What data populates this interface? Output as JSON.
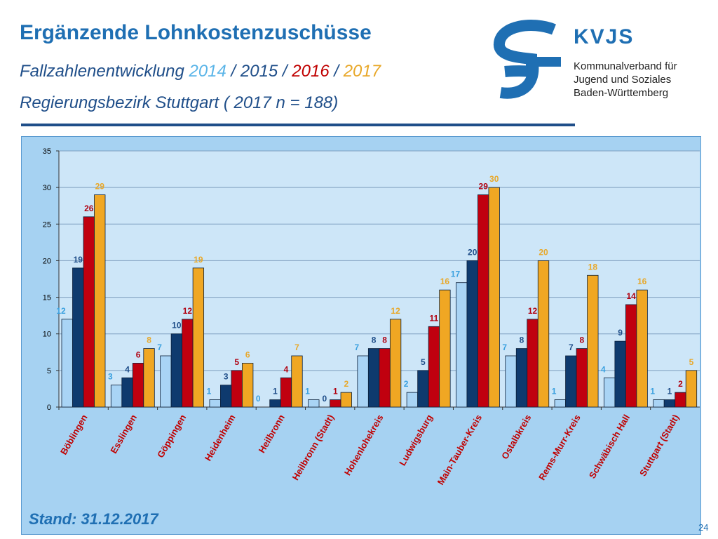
{
  "header": {
    "title": "Ergänzende Lohnkostenzuschüsse",
    "subtitle_prefix": "Fallzahlenentwicklung ",
    "subtitle_years": [
      "2014",
      "2015",
      "2016",
      "2017"
    ],
    "subtitle_sep": " / ",
    "region": "Regierungsbezirk Stuttgart ( 2017 n = 188)"
  },
  "logo": {
    "name": "KVJS",
    "lines": [
      "Kommunalverband für",
      "Jugend und Soziales",
      "Baden-Württemberg"
    ]
  },
  "footer": {
    "stand": "Stand: 31.12.2017",
    "page_number": "24"
  },
  "colors": {
    "s2014": "#a9d4f5",
    "s2015": "#0e3a6e",
    "s2016": "#c0000f",
    "s2017": "#f0a723",
    "label2014": "#3aa0df",
    "label2015": "#1f4e89",
    "label2016": "#b00010",
    "label2017": "#e8a82a",
    "category_label": "#c00000",
    "plot_bg": "#cde6f8",
    "panel_bg": "#a6d2f2"
  },
  "chart_data": {
    "type": "bar",
    "categories": [
      "Böblingen",
      "Esslingen",
      "Göppingen",
      "Heidenheim",
      "Heilbronn",
      "Heilbronn (Stadt)",
      "Hohenlohekreis",
      "Ludwigsburg",
      "Main-Tauber-Kreis",
      "Ostalbkreis",
      "Rems-Murr-Kreis",
      "Schwäbisch Hall",
      "Stuttgart (Stadt)"
    ],
    "series": [
      {
        "name": "2014",
        "values": [
          12,
          3,
          7,
          1,
          0,
          1,
          7,
          2,
          17,
          7,
          1,
          4,
          1
        ]
      },
      {
        "name": "2015",
        "values": [
          19,
          4,
          10,
          3,
          1,
          0,
          8,
          5,
          20,
          8,
          7,
          9,
          1
        ]
      },
      {
        "name": "2016",
        "values": [
          26,
          6,
          12,
          5,
          4,
          1,
          8,
          11,
          29,
          12,
          8,
          14,
          2
        ]
      },
      {
        "name": "2017",
        "values": [
          29,
          8,
          19,
          6,
          7,
          2,
          12,
          16,
          30,
          20,
          18,
          16,
          5
        ]
      }
    ],
    "ylim": [
      0,
      35
    ],
    "yticks": [
      0,
      5,
      10,
      15,
      20,
      25,
      30,
      35
    ],
    "grid": true,
    "data_labels": true
  }
}
